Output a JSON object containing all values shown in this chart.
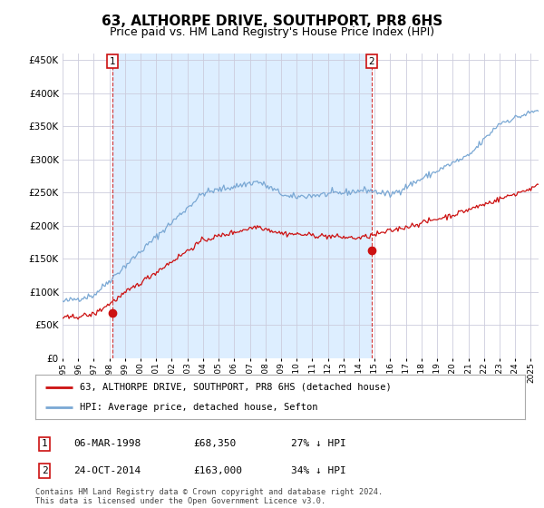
{
  "title": "63, ALTHORPE DRIVE, SOUTHPORT, PR8 6HS",
  "subtitle": "Price paid vs. HM Land Registry's House Price Index (HPI)",
  "ylabel_ticks": [
    "£0",
    "£50K",
    "£100K",
    "£150K",
    "£200K",
    "£250K",
    "£300K",
    "£350K",
    "£400K",
    "£450K"
  ],
  "ytick_values": [
    0,
    50000,
    100000,
    150000,
    200000,
    250000,
    300000,
    350000,
    400000,
    450000
  ],
  "ylim": [
    0,
    460000
  ],
  "xlim_start": 1995.0,
  "xlim_end": 2025.5,
  "hpi_color": "#7aa8d4",
  "price_color": "#cc1111",
  "sale1_x": 1998.18,
  "sale1_y": 68350,
  "sale2_x": 2014.81,
  "sale2_y": 163000,
  "fill_color": "#ddeeff",
  "legend_line1": "63, ALTHORPE DRIVE, SOUTHPORT, PR8 6HS (detached house)",
  "legend_line2": "HPI: Average price, detached house, Sefton",
  "table_row1": [
    "1",
    "06-MAR-1998",
    "£68,350",
    "27% ↓ HPI"
  ],
  "table_row2": [
    "2",
    "24-OCT-2014",
    "£163,000",
    "34% ↓ HPI"
  ],
  "footnote": "Contains HM Land Registry data © Crown copyright and database right 2024.\nThis data is licensed under the Open Government Licence v3.0.",
  "background_color": "#ffffff",
  "grid_color": "#ccccdd",
  "title_fontsize": 11,
  "subtitle_fontsize": 9
}
